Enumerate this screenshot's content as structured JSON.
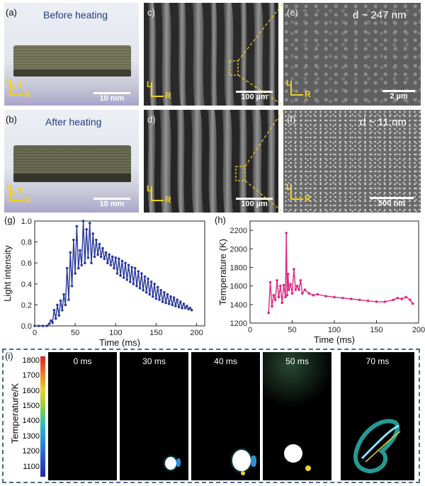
{
  "panels": {
    "a": {
      "label": "(a)",
      "title": "Before heating",
      "scale": "10 mm",
      "axes": {
        "L": "L",
        "T": "T",
        "R": "R"
      }
    },
    "b": {
      "label": "(b)",
      "title": "After heating",
      "scale": "10 mm",
      "axes": {
        "L": "L",
        "T": "T",
        "R": "R"
      }
    },
    "c": {
      "label": "c)",
      "scale": "100 µm",
      "axes": {
        "L": "L",
        "R": "R"
      }
    },
    "d": {
      "label": "d)",
      "scale": "100 µm",
      "axes": {
        "L": "L",
        "R": "R"
      }
    },
    "e": {
      "label": "(e)",
      "size": "d ~ 247 nm",
      "scale": "2 µm",
      "axes": {
        "L": "L",
        "R": "R"
      }
    },
    "f": {
      "label": "(f)",
      "size": "d ~ 11 nm",
      "scale": "500 nm",
      "axes": {
        "L": "L",
        "R": "R"
      }
    },
    "g": {
      "label": "(g)"
    },
    "h": {
      "label": "(h)"
    },
    "i": {
      "label": "(i)",
      "colorbar_title": "Temperature/K",
      "colorbar_ticks": [
        "1800",
        "1700",
        "1600",
        "1500",
        "1400",
        "1300",
        "1200",
        "1100"
      ],
      "frames": [
        "0 ms",
        "30 ms",
        "40 ms",
        "50 ms",
        "70 ms"
      ]
    }
  },
  "chart_data": [
    {
      "type": "line",
      "xlabel": "Time (ms)",
      "ylabel": "Light intensity",
      "xlim": [
        0,
        210
      ],
      "ylim": [
        0,
        1.0
      ],
      "xticks": [
        0,
        50,
        100,
        150,
        200
      ],
      "yticks": [
        0.0,
        0.2,
        0.4,
        0.6,
        0.8,
        1.0
      ],
      "xtick_labels": [
        "0",
        "50",
        "100",
        "150",
        "200"
      ],
      "ytick_labels": [
        "0.0",
        "0.2",
        "0.4",
        "0.6",
        "0.8",
        "1.0"
      ],
      "color": "#2a3a9a",
      "x": [
        0,
        5,
        10,
        15,
        18,
        20,
        22,
        24,
        26,
        28,
        30,
        32,
        34,
        36,
        38,
        40,
        42,
        44,
        46,
        48,
        50,
        52,
        54,
        56,
        58,
        60,
        62,
        64,
        66,
        68,
        70,
        72,
        74,
        76,
        78,
        80,
        82,
        84,
        86,
        88,
        90,
        92,
        94,
        96,
        98,
        100,
        102,
        104,
        106,
        108,
        110,
        112,
        114,
        116,
        118,
        120,
        122,
        124,
        126,
        128,
        130,
        132,
        134,
        136,
        138,
        140,
        142,
        144,
        146,
        148,
        150,
        152,
        154,
        156,
        158,
        160,
        162,
        164,
        166,
        168,
        170,
        172,
        174,
        176,
        178,
        180,
        182,
        184,
        186,
        188,
        190,
        192,
        194
      ],
      "y": [
        0,
        0,
        0,
        0,
        0.02,
        0.05,
        0.03,
        0.15,
        0.07,
        0.2,
        0.1,
        0.24,
        0.15,
        0.3,
        0.2,
        0.55,
        0.25,
        0.7,
        0.38,
        0.82,
        0.5,
        0.95,
        0.55,
        0.72,
        0.58,
        1.0,
        0.6,
        0.92,
        0.65,
        0.98,
        0.6,
        0.88,
        0.66,
        0.82,
        0.68,
        0.78,
        0.66,
        0.74,
        0.64,
        0.7,
        0.6,
        0.68,
        0.58,
        0.66,
        0.55,
        0.65,
        0.5,
        0.64,
        0.48,
        0.62,
        0.46,
        0.6,
        0.44,
        0.58,
        0.42,
        0.56,
        0.4,
        0.55,
        0.38,
        0.52,
        0.36,
        0.5,
        0.34,
        0.47,
        0.32,
        0.45,
        0.3,
        0.42,
        0.28,
        0.4,
        0.26,
        0.37,
        0.25,
        0.34,
        0.23,
        0.32,
        0.22,
        0.3,
        0.21,
        0.28,
        0.2,
        0.27,
        0.19,
        0.25,
        0.18,
        0.23,
        0.17,
        0.21,
        0.17,
        0.19,
        0.16,
        0.17,
        0.15
      ]
    },
    {
      "type": "line",
      "xlabel": "Time (ms)",
      "ylabel": "Temperature (K)",
      "xlim": [
        0,
        200
      ],
      "ylim": [
        1200,
        2300
      ],
      "xticks": [
        0,
        50,
        100,
        150,
        200
      ],
      "yticks": [
        1200,
        1400,
        1600,
        1800,
        2000,
        2200
      ],
      "xtick_labels": [
        "0",
        "50",
        "100",
        "150",
        "200"
      ],
      "ytick_labels": [
        "1200",
        "1400",
        "1600",
        "1800",
        "2000",
        "2200"
      ],
      "color": "#e0287f",
      "x": [
        22,
        24,
        26,
        28,
        30,
        32,
        34,
        36,
        38,
        40,
        42,
        43,
        44,
        45,
        46,
        48,
        50,
        52,
        54,
        56,
        58,
        60,
        62,
        65,
        70,
        75,
        80,
        90,
        100,
        110,
        120,
        130,
        140,
        150,
        160,
        170,
        175,
        180,
        185,
        190,
        193
      ],
      "y": [
        1310,
        1640,
        1380,
        1500,
        1450,
        1660,
        1480,
        1600,
        1420,
        1610,
        1480,
        2170,
        1500,
        1730,
        1560,
        1620,
        1520,
        1780,
        1560,
        1600,
        1560,
        1660,
        1520,
        1560,
        1520,
        1500,
        1510,
        1490,
        1480,
        1470,
        1460,
        1450,
        1440,
        1430,
        1430,
        1450,
        1470,
        1460,
        1480,
        1450,
        1410
      ]
    }
  ]
}
